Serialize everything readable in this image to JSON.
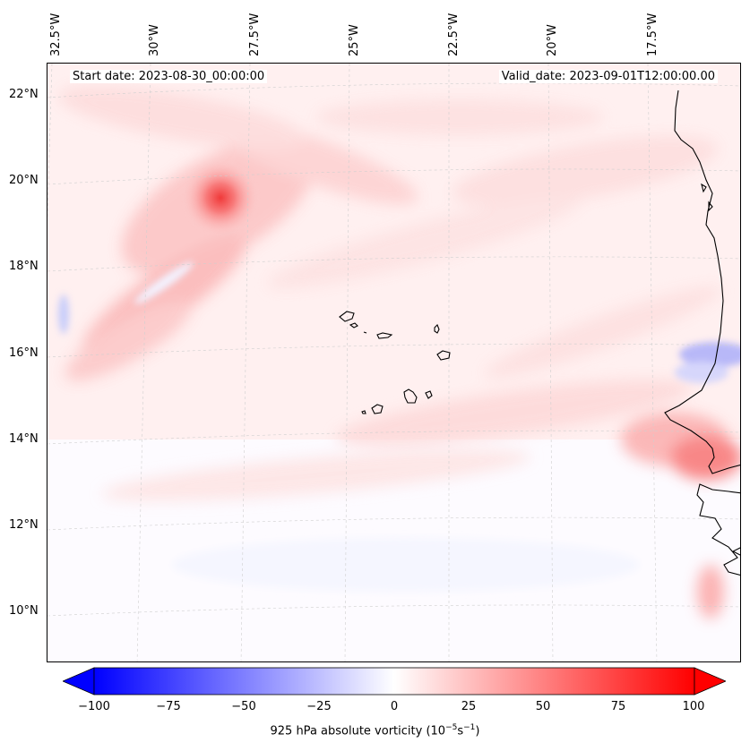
{
  "map": {
    "start_date_text": "Start date: 2023-08-30_00:00:00",
    "valid_date_text": "Valid_date: 2023-09-01T12:00:00.00",
    "lon_labels": [
      "32.5°W",
      "30°W",
      "27.5°W",
      "25°W",
      "22.5°W",
      "20°W",
      "17.5°W"
    ],
    "lat_labels": [
      "22°N",
      "20°N",
      "18°N",
      "16°N",
      "14°N",
      "12°N",
      "10°N"
    ],
    "land_feature": "Cape Verde islands and West African coastline"
  },
  "colorbar": {
    "min": -100,
    "max": 100,
    "ticks": [
      "−100",
      "−75",
      "−50",
      "−25",
      "0",
      "25",
      "50",
      "75",
      "100"
    ],
    "label_prefix": "925 hPa absolute vorticity (10",
    "label_exp1": "−5",
    "label_mid": "s",
    "label_exp2": "−1",
    "label_suffix": ")",
    "color_neg": "#0000ff",
    "color_zero": "#ffffff",
    "color_pos": "#ff0000"
  }
}
